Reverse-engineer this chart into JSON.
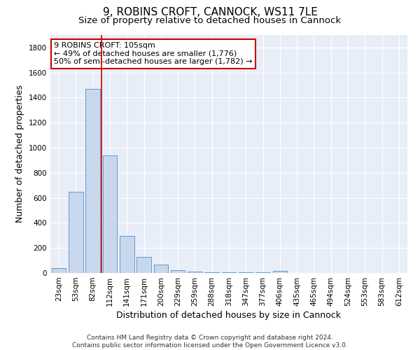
{
  "title_line1": "9, ROBINS CROFT, CANNOCK, WS11 7LE",
  "title_line2": "Size of property relative to detached houses in Cannock",
  "xlabel": "Distribution of detached houses by size in Cannock",
  "ylabel": "Number of detached properties",
  "categories": [
    "23sqm",
    "53sqm",
    "82sqm",
    "112sqm",
    "141sqm",
    "171sqm",
    "200sqm",
    "229sqm",
    "259sqm",
    "288sqm",
    "318sqm",
    "347sqm",
    "377sqm",
    "406sqm",
    "435sqm",
    "465sqm",
    "494sqm",
    "524sqm",
    "553sqm",
    "583sqm",
    "612sqm"
  ],
  "values": [
    40,
    650,
    1470,
    940,
    295,
    130,
    65,
    22,
    10,
    8,
    5,
    4,
    3,
    18,
    0,
    0,
    0,
    0,
    0,
    0,
    0
  ],
  "bar_color": "#c8d8ec",
  "bar_edge_color": "#6699cc",
  "vline_color": "#cc0000",
  "vline_x_index": 2.5,
  "annotation_text": "9 ROBINS CROFT: 105sqm\n← 49% of detached houses are smaller (1,776)\n50% of semi-detached houses are larger (1,782) →",
  "annotation_box_facecolor": "#ffffff",
  "annotation_box_edgecolor": "#cc0000",
  "ylim": [
    0,
    1900
  ],
  "yticks": [
    0,
    200,
    400,
    600,
    800,
    1000,
    1200,
    1400,
    1600,
    1800
  ],
  "fig_bg_color": "#ffffff",
  "plot_bg_color": "#e8eef8",
  "grid_color": "#ffffff",
  "title_fontsize": 11,
  "subtitle_fontsize": 9.5,
  "axis_label_fontsize": 9,
  "tick_fontsize": 7.5,
  "annotation_fontsize": 8,
  "footer_fontsize": 6.5,
  "footer_line1": "Contains HM Land Registry data © Crown copyright and database right 2024.",
  "footer_line2": "Contains public sector information licensed under the Open Government Licence v3.0."
}
